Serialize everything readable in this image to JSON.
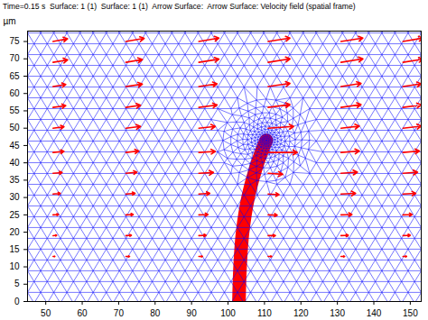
{
  "chart_data": {
    "type": "vector_field",
    "title": "Time=0.15 s  Surface: 1 (1)  Surface: 1 (1)  Arrow Surface:  Arrow Surface: Velocity field (spatial frame)",
    "y_label": "µm",
    "xlim": [
      45,
      153
    ],
    "ylim": [
      0,
      78
    ],
    "xticks": [
      50,
      60,
      70,
      80,
      90,
      100,
      110,
      120,
      130,
      140,
      150
    ],
    "yticks": [
      0,
      5,
      10,
      15,
      20,
      25,
      30,
      35,
      40,
      45,
      50,
      55,
      60,
      65,
      70,
      75
    ],
    "filament": {
      "x": [
        103,
        103.3,
        104,
        105.5,
        107.5,
        109.5,
        110.5
      ],
      "y": [
        0,
        10,
        20,
        30,
        38,
        44,
        46.5
      ],
      "color": "#ff0000"
    },
    "arrows": {
      "color": "#ff0000",
      "x": [
        52,
        72,
        92,
        111,
        131,
        148
      ],
      "y": [
        75,
        69,
        62,
        56,
        50,
        43,
        37,
        31,
        25,
        19,
        13
      ],
      "u": [
        [
          4,
          4,
          3.5,
          3.5,
          3,
          3,
          2.5,
          2,
          1.5,
          1,
          0.5
        ],
        [
          5,
          4.5,
          4.5,
          4,
          4,
          3.5,
          3,
          2.5,
          2,
          1.5,
          1
        ],
        [
          5.5,
          5.5,
          5,
          5,
          4.5,
          4.5,
          4,
          3,
          2.5,
          2,
          1
        ],
        [
          6,
          6,
          6,
          6,
          7,
          8,
          4,
          3,
          2.5,
          2,
          1
        ],
        [
          6,
          6,
          5.5,
          5.5,
          5,
          5,
          4.5,
          4,
          3,
          2,
          1
        ],
        [
          5.5,
          5.5,
          5,
          5,
          5,
          4.5,
          4,
          3.5,
          2.5,
          2,
          1
        ]
      ],
      "v": [
        [
          0.8,
          0.7,
          0.6,
          0.5,
          0.4,
          0.3,
          0.2,
          0.2,
          0.1,
          0.1,
          0
        ],
        [
          0.9,
          0.8,
          0.7,
          0.6,
          0.5,
          0.4,
          0.3,
          0.2,
          0.1,
          0.1,
          0
        ],
        [
          1,
          0.9,
          0.8,
          0.7,
          0.5,
          0.3,
          0.2,
          0.2,
          0.1,
          0.1,
          0
        ],
        [
          1,
          1,
          0.9,
          0.8,
          0.5,
          0,
          -0.3,
          -0.2,
          -0.1,
          0,
          0
        ],
        [
          1,
          1,
          0.9,
          0.8,
          0.6,
          0.4,
          0.3,
          0.2,
          0.1,
          0.1,
          0
        ],
        [
          1,
          0.9,
          0.8,
          0.7,
          0.6,
          0.4,
          0.3,
          0.2,
          0.1,
          0.1,
          0
        ]
      ]
    },
    "color": "#0000ff"
  }
}
